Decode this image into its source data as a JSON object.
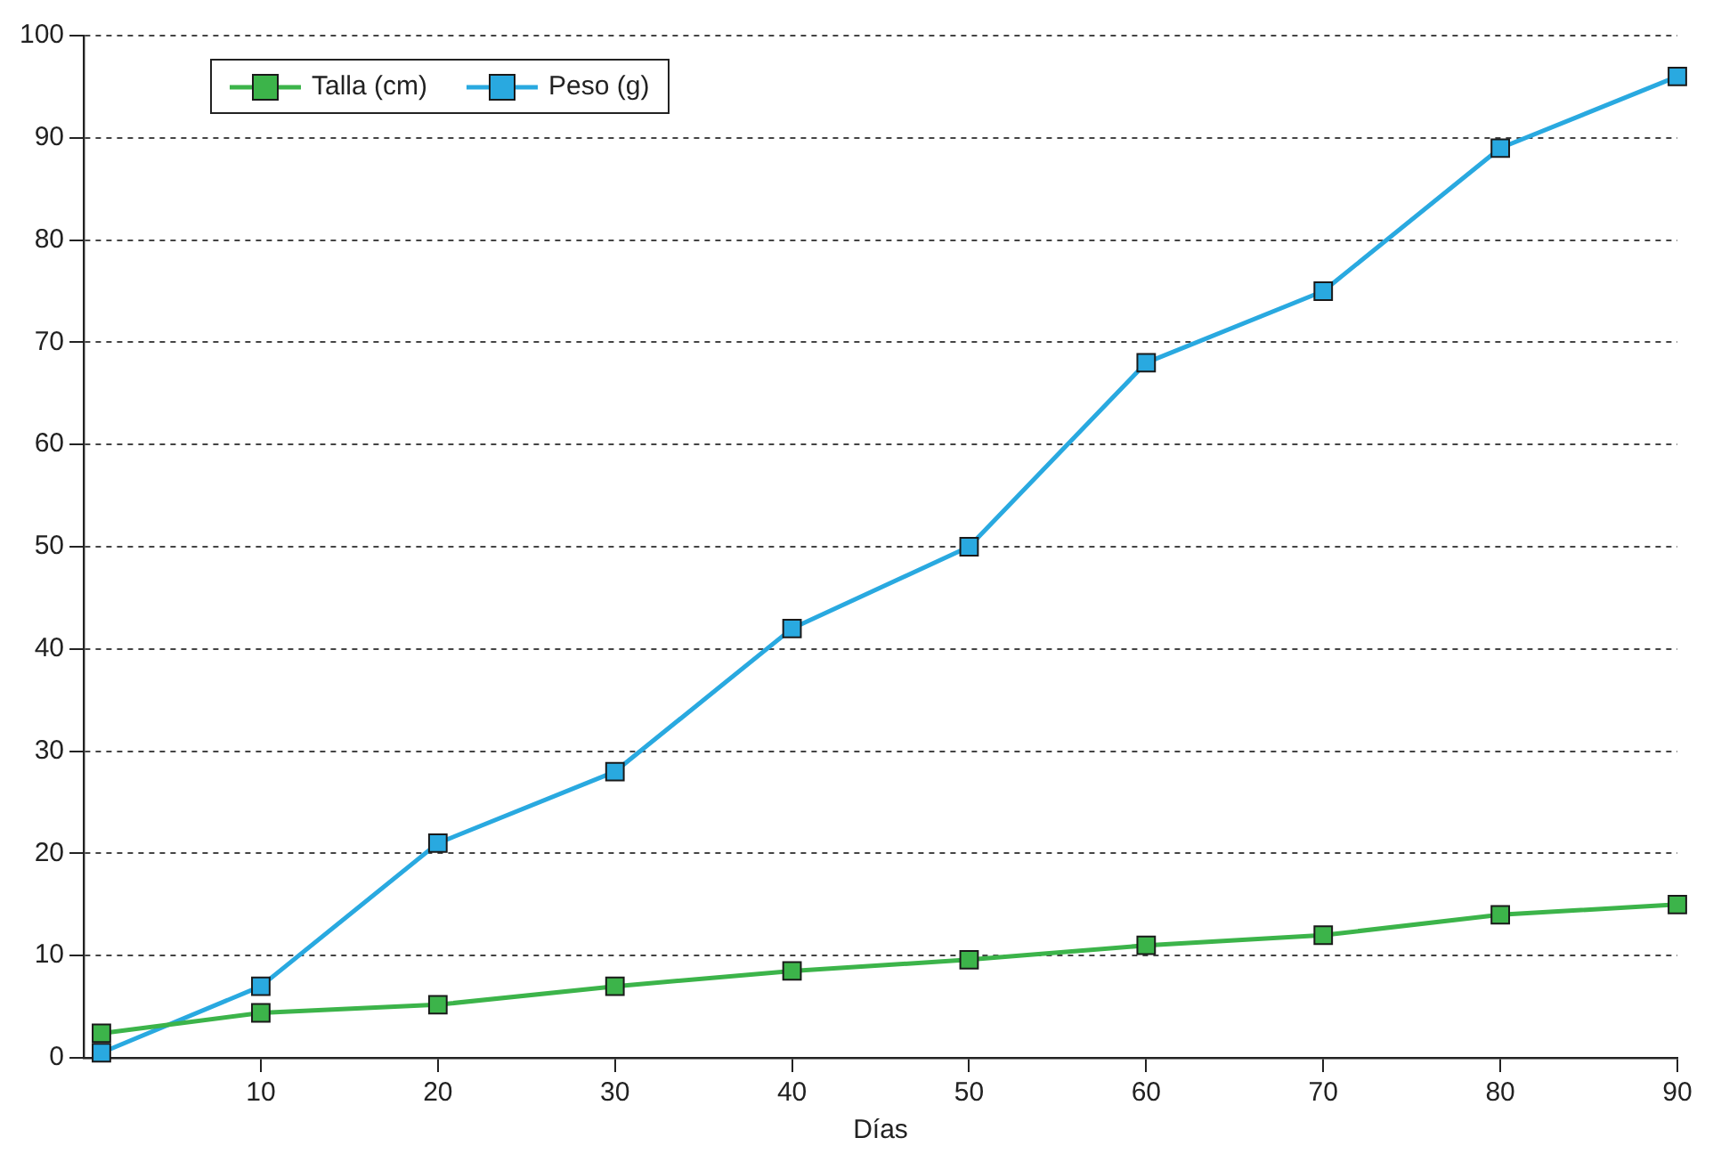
{
  "chart_data": {
    "type": "line",
    "xlabel": "Días",
    "x": [
      1,
      10,
      20,
      30,
      40,
      50,
      60,
      70,
      80,
      90
    ],
    "series": [
      {
        "name": "Talla (cm)",
        "color": "#3cb44a",
        "values": [
          2.4,
          4.4,
          5.2,
          7,
          8.5,
          9.6,
          11,
          12,
          14,
          15
        ]
      },
      {
        "name": "Peso (g)",
        "color": "#29a9e0",
        "values": [
          0.5,
          7,
          21,
          28,
          42,
          50,
          68,
          75,
          89,
          96
        ]
      }
    ],
    "xlim": [
      0,
      90
    ],
    "xticks": [
      10,
      20,
      30,
      40,
      50,
      60,
      70,
      80,
      90
    ],
    "ylim": [
      0,
      100
    ],
    "yticks": [
      0,
      10,
      20,
      30,
      40,
      50,
      60,
      70,
      80,
      90,
      100
    ],
    "grid": "y",
    "legend": "top left",
    "marker": "square",
    "line_style": "solid"
  }
}
